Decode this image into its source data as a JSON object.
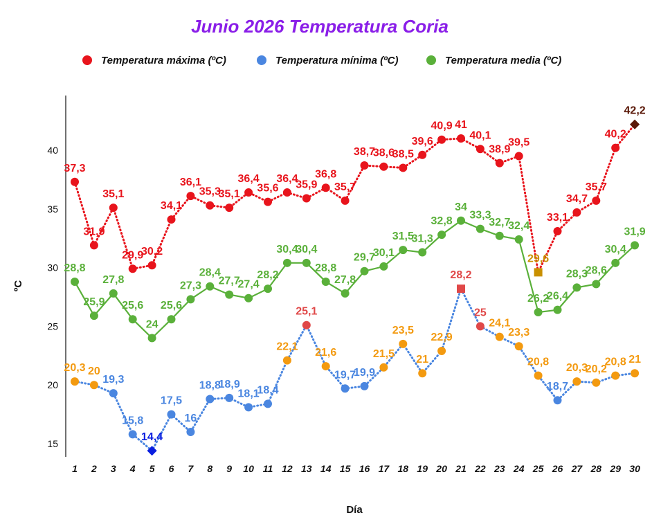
{
  "chart_data": {
    "type": "line",
    "title": "Junio 2026 Temperatura Coria",
    "xlabel": "Día",
    "ylabel": "ºC",
    "ylim": [
      15,
      45
    ],
    "yticks": [
      15,
      20,
      25,
      30,
      35,
      40
    ],
    "x": [
      1,
      2,
      3,
      4,
      5,
      6,
      7,
      8,
      9,
      10,
      11,
      12,
      13,
      14,
      15,
      16,
      17,
      18,
      19,
      20,
      21,
      22,
      23,
      24,
      25,
      26,
      27,
      28,
      29,
      30
    ],
    "legend_position": "top",
    "grid": false,
    "series": [
      {
        "name": "Temperatura máxima (ºC)",
        "color": "#e8141c",
        "style": "dotted",
        "values": [
          37.3,
          31.9,
          35.1,
          29.9,
          30.2,
          34.1,
          36.1,
          35.3,
          35.1,
          36.4,
          35.6,
          36.4,
          35.9,
          36.8,
          35.7,
          38.7,
          38.6,
          38.5,
          39.6,
          40.9,
          41,
          40.1,
          38.9,
          39.5,
          29.6,
          33.1,
          34.7,
          35.7,
          40.2,
          42.2
        ],
        "labels": [
          "37,3",
          "31,9",
          "35,1",
          "29,9",
          "30,2",
          "34,1",
          "36,1",
          "35,3",
          "35,1",
          "36,4",
          "35,6",
          "36,4",
          "35,9",
          "36,8",
          "35,7",
          "38,7",
          "38,6",
          "38,5",
          "39,6",
          "40,9",
          "41",
          "40,1",
          "38,9",
          "39,5",
          "29,6",
          "33,1",
          "34,7",
          "35,7",
          "40,2",
          "42,2"
        ],
        "point_colors": {
          "25": "#c99000",
          "30": "#5a1808"
        }
      },
      {
        "name": "Temperatura mínima (ºC)",
        "color": "#4a86e0",
        "style": "dotted",
        "values": [
          20.3,
          20,
          19.3,
          15.8,
          14.4,
          17.5,
          16,
          18.8,
          18.9,
          18.1,
          18.4,
          22.1,
          25.1,
          21.6,
          19.7,
          19.9,
          21.5,
          23.5,
          21,
          22.9,
          28.2,
          25,
          24.1,
          23.3,
          20.8,
          18.7,
          20.3,
          20.2,
          20.8,
          21
        ],
        "labels": [
          "20,3",
          "20",
          "19,3",
          "15,8",
          "14,4",
          "17,5",
          "16",
          "18,8",
          "18,9",
          "18,1",
          "18,4",
          "22,1",
          "25,1",
          "21,6",
          "19,7",
          "19,9",
          "21,5",
          "23,5",
          "21",
          "22,9",
          "28,2",
          "25",
          "24,1",
          "23,3",
          "20,8",
          "18,7",
          "20,3",
          "20,2",
          "20,8",
          "21"
        ],
        "point_colors": {
          "1": "#f39a10",
          "2": "#f39a10",
          "5": "#0a1ee0",
          "12": "#f39a10",
          "13": "#e04848",
          "14": "#f39a10",
          "17": "#f39a10",
          "18": "#f39a10",
          "19": "#f39a10",
          "20": "#f39a10",
          "21": "#e04848",
          "22": "#e04848",
          "23": "#f39a10",
          "24": "#f39a10",
          "25": "#f39a10",
          "27": "#f39a10",
          "28": "#f39a10",
          "29": "#f39a10",
          "30": "#f39a10"
        }
      },
      {
        "name": "Temperatura media (ºC)",
        "color": "#5ab03a",
        "style": "solid",
        "values": [
          28.8,
          25.9,
          27.8,
          25.6,
          24,
          25.6,
          27.3,
          28.4,
          27.7,
          27.4,
          28.2,
          30.4,
          30.4,
          28.8,
          27.8,
          29.7,
          30.1,
          31.5,
          31.3,
          32.8,
          34,
          33.3,
          32.7,
          32.4,
          26.2,
          26.4,
          28.3,
          28.6,
          30.4,
          31.9
        ],
        "labels": [
          "28,8",
          "25,9",
          "27,8",
          "25,6",
          "24",
          "25,6",
          "27,3",
          "28,4",
          "27,7",
          "27,4",
          "28,2",
          "30,4",
          "30,4",
          "28,8",
          "27,8",
          "29,7",
          "30,1",
          "31,5",
          "31,3",
          "32,8",
          "34",
          "33,3",
          "32,7",
          "32,4",
          "26,2",
          "26,4",
          "28,3",
          "28,6",
          "30,4",
          "31,9"
        ],
        "point_colors": {}
      }
    ]
  }
}
